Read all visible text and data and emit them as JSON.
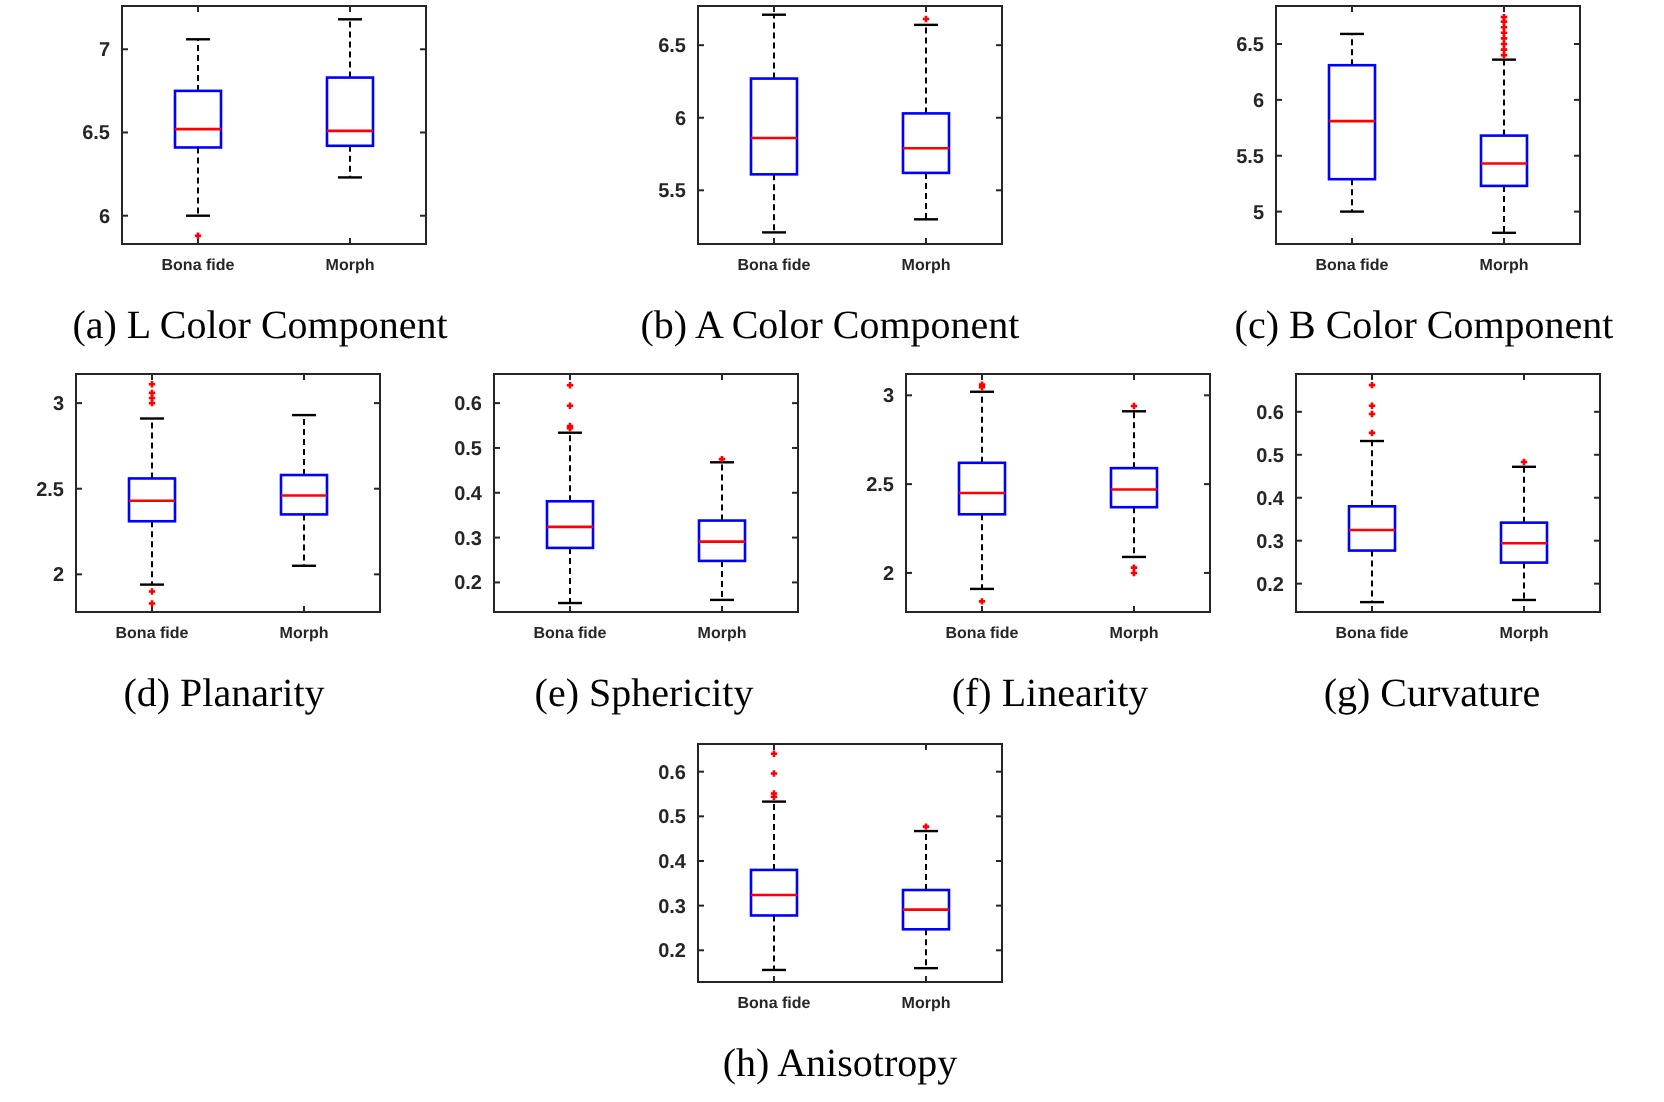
{
  "chart_data": [
    {
      "type": "box",
      "title": "(a) L Color Component",
      "categories": [
        "Bona fide",
        "Morph"
      ],
      "color": "#0000ff",
      "ylim": [
        5.83,
        7.26
      ],
      "yticks": [
        6,
        6.5,
        7
      ],
      "boxes": [
        {
          "low": 6.0,
          "q1": 6.41,
          "median": 6.52,
          "q3": 6.75,
          "high": 7.06,
          "outliers": [
            5.88
          ]
        },
        {
          "low": 6.23,
          "q1": 6.42,
          "median": 6.51,
          "q3": 6.83,
          "high": 7.18
        }
      ]
    },
    {
      "type": "box",
      "title": "(b) A Color Component",
      "categories": [
        "Bona fide",
        "Morph"
      ],
      "color": "#0000ff",
      "ylim": [
        5.13,
        6.77
      ],
      "yticks": [
        5.5,
        6,
        6.5
      ],
      "boxes": [
        {
          "low": 5.21,
          "q1": 5.61,
          "median": 5.86,
          "q3": 6.27,
          "high": 6.71
        },
        {
          "low": 5.3,
          "q1": 5.62,
          "median": 5.79,
          "q3": 6.03,
          "high": 6.64,
          "outliers": [
            6.68
          ]
        }
      ]
    },
    {
      "type": "box",
      "title": "(c) B Color Component",
      "categories": [
        "Bona fide",
        "Morph"
      ],
      "color": "#0000ff",
      "ylim": [
        4.71,
        6.84
      ],
      "yticks": [
        5,
        5.5,
        6,
        6.5
      ],
      "boxes": [
        {
          "low": 5.0,
          "q1": 5.29,
          "median": 5.81,
          "q3": 6.31,
          "high": 6.59
        },
        {
          "low": 4.81,
          "q1": 5.23,
          "median": 5.43,
          "q3": 5.68,
          "high": 6.36,
          "outliers": [
            6.4,
            6.45,
            6.5,
            6.55,
            6.6,
            6.65,
            6.7,
            6.74
          ]
        }
      ]
    },
    {
      "type": "box",
      "title": "(d) Planarity",
      "categories": [
        "Bona fide",
        "Morph"
      ],
      "color": "#0000ff",
      "ylim": [
        1.78,
        3.17
      ],
      "yticks": [
        2,
        2.5,
        3
      ],
      "boxes": [
        {
          "low": 1.94,
          "q1": 2.31,
          "median": 2.43,
          "q3": 2.56,
          "high": 2.91,
          "outliers": [
            3.11,
            3.06,
            3.03,
            3.0,
            1.9,
            1.83
          ]
        },
        {
          "low": 2.05,
          "q1": 2.35,
          "median": 2.46,
          "q3": 2.58,
          "high": 2.93
        }
      ]
    },
    {
      "type": "box",
      "title": "(e) Sphericity",
      "categories": [
        "Bona fide",
        "Morph"
      ],
      "color": "#0000ff",
      "ylim": [
        0.134,
        0.665
      ],
      "yticks": [
        0.2,
        0.3,
        0.4,
        0.5,
        0.6
      ],
      "boxes": [
        {
          "low": 0.154,
          "q1": 0.277,
          "median": 0.324,
          "q3": 0.381,
          "high": 0.534,
          "outliers": [
            0.64,
            0.594,
            0.549,
            0.544
          ]
        },
        {
          "low": 0.161,
          "q1": 0.248,
          "median": 0.291,
          "q3": 0.338,
          "high": 0.468,
          "outliers": [
            0.475
          ]
        }
      ]
    },
    {
      "type": "box",
      "title": "(f) Linearity",
      "categories": [
        "Bona fide",
        "Morph"
      ],
      "color": "#0000ff",
      "ylim": [
        1.78,
        3.12
      ],
      "yticks": [
        2,
        2.5,
        3
      ],
      "boxes": [
        {
          "low": 1.91,
          "q1": 2.33,
          "median": 2.45,
          "q3": 2.62,
          "high": 3.02,
          "outliers": [
            3.06,
            3.045,
            1.84
          ]
        },
        {
          "low": 2.09,
          "q1": 2.37,
          "median": 2.47,
          "q3": 2.59,
          "high": 2.91,
          "outliers": [
            2.94,
            2.03,
            2.0
          ]
        }
      ]
    },
    {
      "type": "box",
      "title": "(g) Curvature",
      "categories": [
        "Bona fide",
        "Morph"
      ],
      "color": "#0000ff",
      "ylim": [
        0.134,
        0.688
      ],
      "yticks": [
        0.2,
        0.3,
        0.4,
        0.5,
        0.6
      ],
      "boxes": [
        {
          "low": 0.157,
          "q1": 0.277,
          "median": 0.325,
          "q3": 0.38,
          "high": 0.532,
          "outliers": [
            0.662,
            0.614,
            0.595,
            0.551
          ]
        },
        {
          "low": 0.162,
          "q1": 0.249,
          "median": 0.294,
          "q3": 0.342,
          "high": 0.472,
          "outliers": [
            0.483
          ]
        }
      ]
    },
    {
      "type": "box",
      "title": "(h) Anisotropy",
      "categories": [
        "Bona fide",
        "Morph"
      ],
      "color": "#0000ff",
      "ylim": [
        0.129,
        0.662
      ],
      "yticks": [
        0.2,
        0.3,
        0.4,
        0.5,
        0.6
      ],
      "boxes": [
        {
          "low": 0.156,
          "q1": 0.278,
          "median": 0.324,
          "q3": 0.38,
          "high": 0.533,
          "outliers": [
            0.64,
            0.596,
            0.551,
            0.544
          ]
        },
        {
          "low": 0.16,
          "q1": 0.247,
          "median": 0.291,
          "q3": 0.335,
          "high": 0.467,
          "outliers": [
            0.477
          ]
        }
      ]
    }
  ]
}
